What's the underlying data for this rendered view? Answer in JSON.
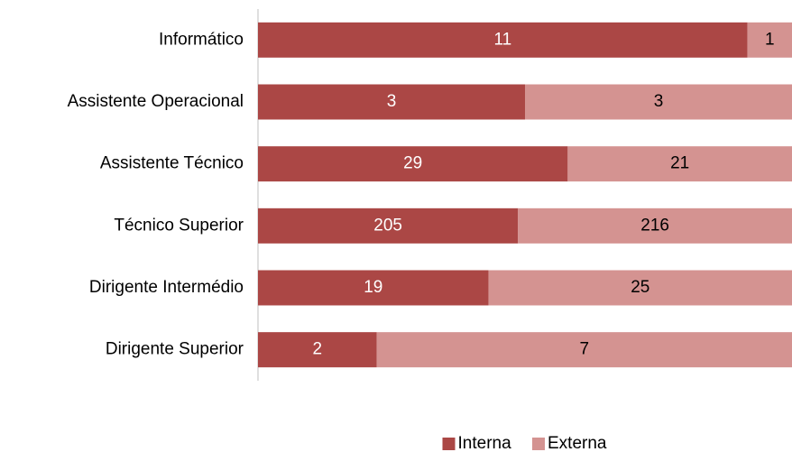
{
  "chart_data": {
    "type": "bar",
    "orientation": "horizontal",
    "stacking": "percent",
    "categories": [
      "Informático",
      "Assistente Operacional",
      "Assistente Técnico",
      "Técnico Superior",
      "Dirigente Intermédio",
      "Dirigente Superior"
    ],
    "series": [
      {
        "name": "Interna",
        "color": "#ab4745",
        "label_color": "#ffffff",
        "values": [
          11,
          3,
          29,
          205,
          19,
          2
        ]
      },
      {
        "name": "Externa",
        "color": "#d49391",
        "label_color": "#000000",
        "values": [
          1,
          3,
          21,
          216,
          25,
          7
        ]
      }
    ],
    "legend": "bottom"
  }
}
